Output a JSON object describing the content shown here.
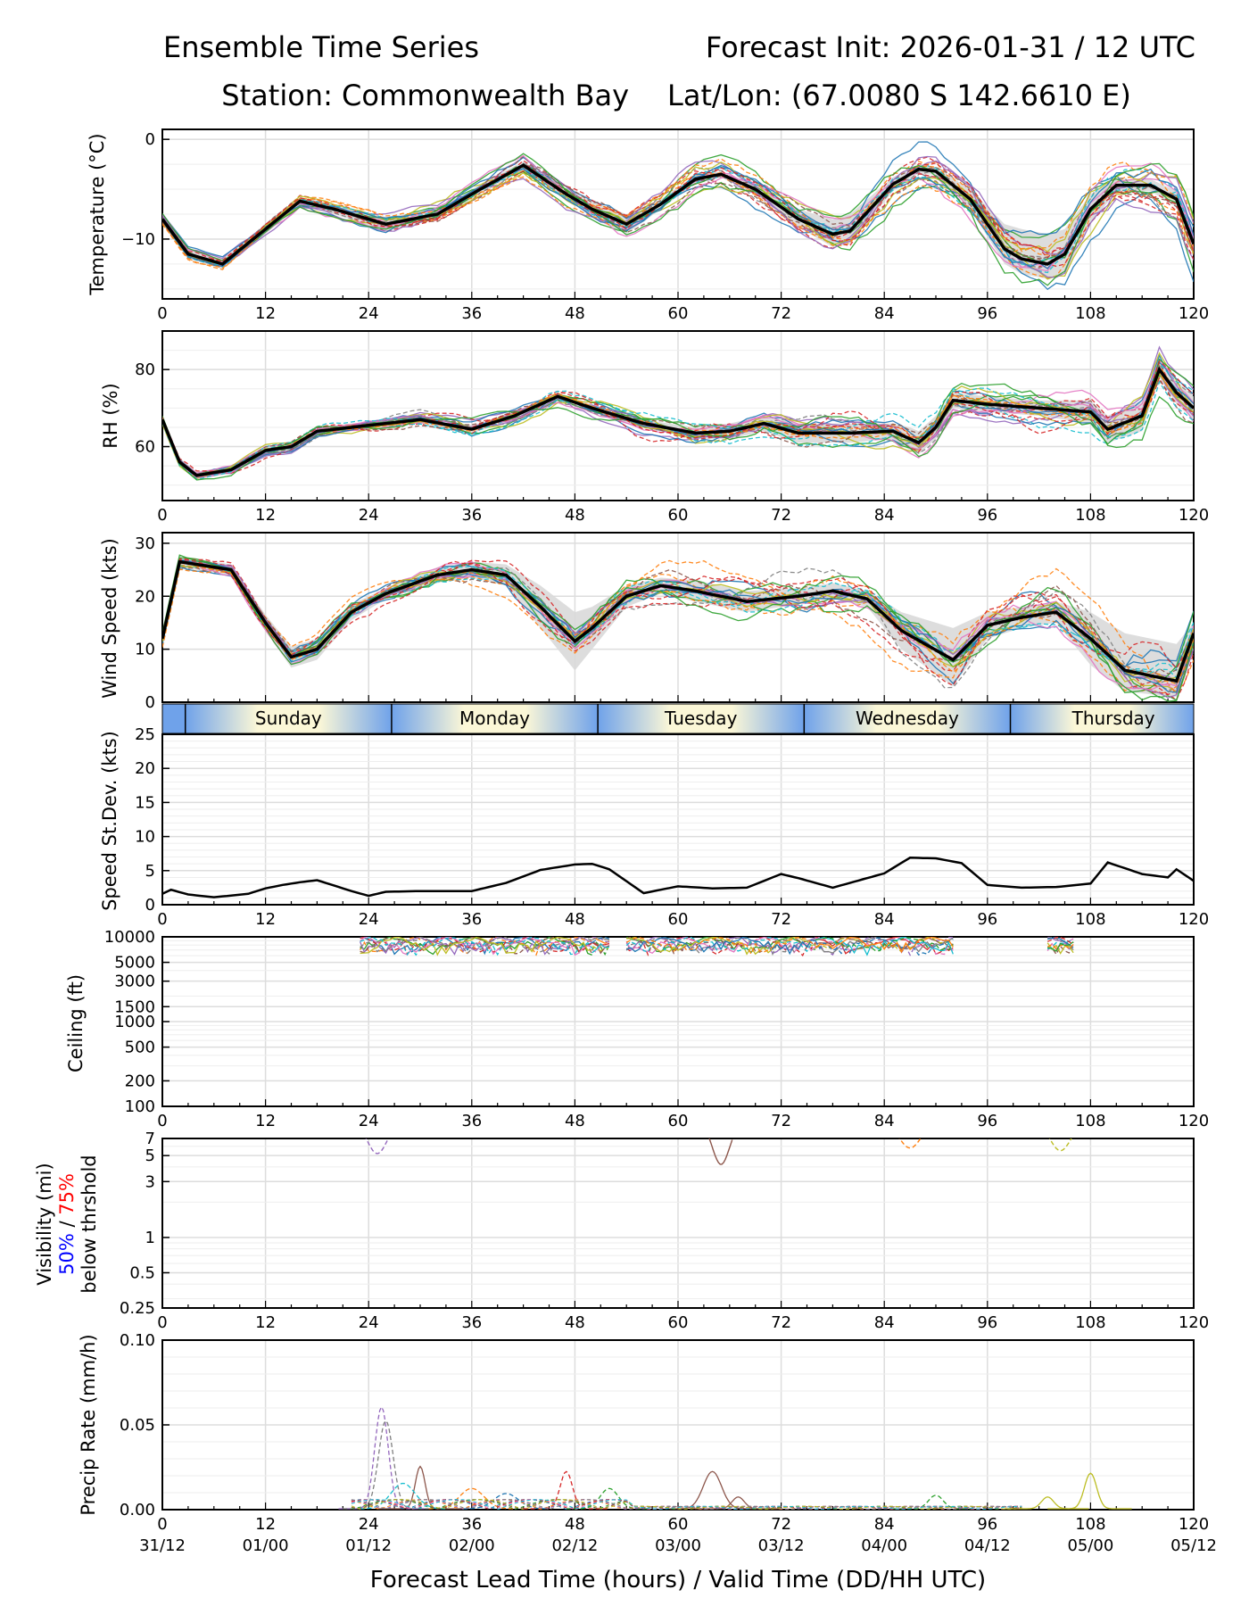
{
  "title": {
    "left_line1": "Ensemble Time Series",
    "right_line1": "Forecast Init: 2026-01-31 / 12 UTC",
    "left_line2": "Station: Commonwealth Bay",
    "right_line2": "Lat/Lon: (67.0080 S 142.6610 E)"
  },
  "x_axis": {
    "lead_ticks": [
      "0",
      "12",
      "24",
      "36",
      "48",
      "60",
      "72",
      "84",
      "96",
      "108",
      "120"
    ],
    "valid_ticks": [
      "31/12",
      "01/00",
      "01/12",
      "02/00",
      "02/12",
      "03/00",
      "03/12",
      "04/00",
      "04/12",
      "05/00",
      "05/12"
    ],
    "xlabel": "Forecast Lead Time (hours) / Valid Time (DD/HH UTC)",
    "range": [
      0,
      120
    ]
  },
  "day_band": {
    "labels": [
      "Sunday",
      "Monday",
      "Tuesday",
      "Wednesday",
      "Thursday"
    ],
    "boundaries_hours": [
      2.67,
      26.67,
      50.67,
      74.67,
      98.67
    ]
  },
  "colors": {
    "mean": "#000000",
    "spread_fill": "#d9d9d9",
    "members": [
      "#1f77b4",
      "#ff7f0e",
      "#2ca02c",
      "#d62728",
      "#9467bd",
      "#8c564b",
      "#e377c2",
      "#7f7f7f",
      "#bcbd22",
      "#17becf"
    ],
    "vis_50": "#0000ff",
    "vis_75": "#ff0000"
  },
  "chart_data": [
    {
      "type": "line",
      "id": "temperature",
      "ylabel": "Temperature (°C)",
      "yticks": [
        "0",
        "−10"
      ],
      "ylim": [
        -16,
        1
      ],
      "x": [
        0,
        3,
        7,
        12,
        16,
        20,
        26,
        32,
        37,
        42,
        47,
        50,
        54,
        58,
        62,
        65,
        69,
        74,
        78,
        80,
        85,
        88,
        90,
        94,
        98,
        100,
        103,
        105,
        108,
        111,
        115,
        118,
        120
      ],
      "mean": [
        -8,
        -11.5,
        -12.5,
        -9,
        -6.2,
        -7,
        -8.5,
        -7.5,
        -5,
        -2.6,
        -5.5,
        -7,
        -8.5,
        -6.5,
        -4,
        -3.5,
        -5,
        -8,
        -9.5,
        -9.2,
        -4.5,
        -3,
        -3.2,
        -6,
        -11,
        -12,
        -12.5,
        -11.5,
        -7,
        -4.6,
        -4.6,
        -6,
        -10.5
      ],
      "spread_upper": [
        -7.5,
        -11,
        -12,
        -8.5,
        -5.8,
        -6.5,
        -7.8,
        -7,
        -4.5,
        -2.2,
        -5,
        -6.2,
        -7.5,
        -6,
        -3.6,
        -3.2,
        -4.5,
        -7,
        -8,
        -7.5,
        -3.8,
        -2.6,
        -2.8,
        -5,
        -8.5,
        -9,
        -9.5,
        -9,
        -5.5,
        -4,
        -4,
        -5.2,
        -9.5
      ],
      "spread_lower": [
        -8.5,
        -12,
        -13,
        -9.5,
        -6.6,
        -7.5,
        -9.2,
        -8,
        -5.5,
        -3,
        -6,
        -7.8,
        -9.5,
        -7,
        -4.4,
        -3.8,
        -5.6,
        -8.8,
        -10.8,
        -10.5,
        -5.2,
        -3.4,
        -3.6,
        -7,
        -12.5,
        -13.5,
        -14,
        -13.5,
        -8.5,
        -5.2,
        -5.2,
        -6.8,
        -11.5
      ],
      "members_hint": "30 ensemble members, dashed/solid colored lines"
    },
    {
      "type": "line",
      "id": "rh",
      "ylabel": "RH (%)",
      "yticks": [
        "60",
        "80"
      ],
      "ylim": [
        46,
        90
      ],
      "x": [
        0,
        2,
        4,
        8,
        12,
        15,
        18,
        24,
        30,
        36,
        41,
        46,
        50,
        56,
        62,
        66,
        70,
        74,
        80,
        85,
        87,
        88,
        90,
        92,
        96,
        102,
        108,
        110,
        114,
        116,
        118,
        120
      ],
      "mean": [
        67,
        56,
        52.5,
        54,
        59,
        60,
        64,
        65.5,
        67,
        64.5,
        68,
        73,
        70,
        66,
        63.5,
        64,
        66,
        63.5,
        63.5,
        64,
        62,
        61,
        65,
        72,
        71,
        70,
        69,
        64.5,
        68,
        80,
        74,
        70
      ],
      "spread_upper": [
        68,
        57,
        53.5,
        55,
        60,
        61,
        65,
        66.5,
        68,
        65.5,
        69,
        74,
        71,
        67,
        65,
        66,
        68,
        66,
        66,
        66,
        65,
        64,
        68,
        74,
        73,
        72,
        72,
        68,
        72,
        82,
        77,
        73
      ],
      "spread_lower": [
        66,
        55,
        51.5,
        53,
        58,
        59,
        63,
        64.5,
        66,
        63.5,
        67,
        72,
        69,
        65,
        62,
        62,
        64,
        61,
        61,
        62,
        59,
        58,
        62,
        70,
        69,
        68,
        66,
        61,
        64,
        78,
        71,
        67
      ]
    },
    {
      "type": "line",
      "id": "wind_speed",
      "ylabel": "Wind Speed (kts)",
      "yticks": [
        "0",
        "10",
        "20",
        "30"
      ],
      "ylim": [
        0,
        32
      ],
      "x": [
        0,
        2,
        4,
        8,
        12,
        15,
        18,
        22,
        26,
        32,
        36,
        40,
        44,
        48,
        50,
        54,
        58,
        62,
        68,
        74,
        78,
        82,
        86,
        92,
        96,
        100,
        104,
        108,
        112,
        118,
        120
      ],
      "mean": [
        12,
        26.5,
        26,
        25,
        15,
        8.5,
        10,
        17,
        20.5,
        24,
        25,
        24,
        18,
        11.5,
        14,
        20,
        22,
        21,
        19,
        20,
        21,
        19.5,
        13.5,
        8,
        14.5,
        16,
        17,
        12,
        6,
        4,
        13
      ],
      "spread_upper": [
        13,
        27.5,
        27,
        26,
        16.5,
        10.5,
        12,
        18.5,
        21.5,
        25.5,
        26.5,
        26,
        22,
        17,
        18,
        22,
        23.5,
        23,
        21,
        21.5,
        22.5,
        21,
        17,
        14,
        17,
        18,
        19,
        17,
        13,
        11,
        15
      ],
      "spread_lower": [
        11,
        25.5,
        25,
        24,
        13.5,
        6.5,
        8,
        15.5,
        19.5,
        22.5,
        23.5,
        22,
        14,
        6,
        10,
        18,
        20.5,
        19,
        17,
        18.5,
        19.5,
        18,
        10,
        3,
        12,
        14,
        15,
        7,
        2,
        1,
        11
      ]
    },
    {
      "type": "line",
      "id": "speed_stdev",
      "ylabel": "Speed St.Dev. (kts)",
      "yticks": [
        "0",
        "5",
        "10",
        "15",
        "20",
        "25"
      ],
      "ylim": [
        0,
        25
      ],
      "x": [
        0,
        1,
        3,
        6,
        10,
        12,
        14,
        16,
        18,
        20,
        22,
        24,
        26,
        30,
        36,
        40,
        44,
        48,
        50,
        52,
        56,
        60,
        64,
        68,
        72,
        74,
        78,
        84,
        87,
        90,
        93,
        96,
        100,
        104,
        108,
        110,
        114,
        117,
        118,
        120
      ],
      "mean": [
        1.6,
        2.2,
        1.5,
        1.1,
        1.6,
        2.4,
        2.9,
        3.3,
        3.6,
        2.8,
        2,
        1.3,
        1.9,
        2,
        2,
        3.2,
        5.1,
        5.9,
        6,
        5.2,
        1.7,
        2.7,
        2.4,
        2.5,
        4.5,
        3.9,
        2.5,
        4.6,
        6.9,
        6.8,
        6.1,
        2.9,
        2.5,
        2.6,
        3.1,
        6.2,
        4.5,
        4,
        5.2,
        3.5
      ]
    },
    {
      "type": "line",
      "id": "ceiling",
      "ylabel": "Ceiling (ft)",
      "scale": "log",
      "yticks": [
        "100",
        "200",
        "500",
        "1000",
        "1500",
        "3000",
        "5000",
        "10000"
      ],
      "ylim": [
        100,
        10000
      ]
    },
    {
      "type": "line",
      "id": "visibility",
      "ylabel_line1": "Visibility (mi)",
      "ylabel_50": "50%",
      "ylabel_sep": " / ",
      "ylabel_75": "75%",
      "ylabel_line2": "below thrshold",
      "scale": "log",
      "yticks": [
        "0.25",
        "0.5",
        "1",
        "3",
        "5",
        "7"
      ],
      "ylim": [
        0.25,
        7
      ]
    },
    {
      "type": "line",
      "id": "precip",
      "ylabel": "Precip Rate (mm/h)",
      "yticks": [
        "0.00",
        "0.05",
        "0.10"
      ],
      "ylim": [
        0,
        0.1
      ]
    }
  ]
}
